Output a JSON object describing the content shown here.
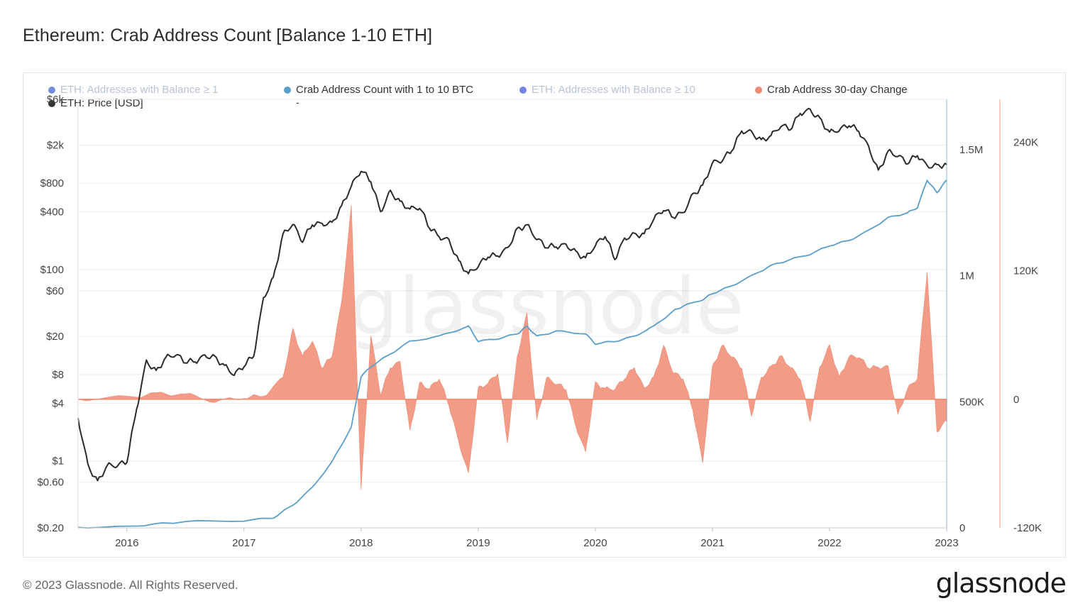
{
  "title": "Ethereum: Crab Address Count [Balance 1-10 ETH]",
  "legend": [
    {
      "label": "ETH: Addresses with Balance ≥ 1",
      "color": "#5b7bd6",
      "active": false
    },
    {
      "label": "Crab Address Count with 1 to 10 BTC",
      "color": "#5b9ec9",
      "active": true
    },
    {
      "label": "ETH: Addresses with Balance ≥ 10",
      "color": "#5b6fe0",
      "active": false
    },
    {
      "label": "Crab Address 30-day Change",
      "color": "#f08a72",
      "active": true
    },
    {
      "label": "ETH: Price [USD]",
      "color": "#333333",
      "active": true
    }
  ],
  "legend_dash": "-",
  "footer": {
    "copyright": "© 2023 Glassnode. All Rights Reserved.",
    "logo": "glassnode"
  },
  "watermark": "glassnode",
  "colors": {
    "price": "#2b2b2b",
    "count": "#5b9ec9",
    "change": "#f08a72",
    "grid": "#ececec"
  },
  "chart_data": {
    "type": "line",
    "x_ticks": [
      "2016",
      "2017",
      "2018",
      "2019",
      "2020",
      "2021",
      "2022",
      "2023"
    ],
    "x_range": [
      "2015-08",
      "2023-01"
    ],
    "y_left": {
      "label": "ETH: Price [USD]",
      "scale": "log",
      "ticks": [
        "$0.20",
        "$0.60",
        "$1",
        "$4",
        "$8",
        "$20",
        "$60",
        "$100",
        "$400",
        "$800",
        "$2k",
        "$6k"
      ]
    },
    "y_right_count": {
      "ticks": [
        "0",
        "500K",
        "1M",
        "1.5M"
      ],
      "range": [
        0,
        1700000
      ]
    },
    "y_right_change": {
      "ticks": [
        "-120K",
        "0",
        "120K",
        "240K"
      ],
      "range": [
        -120000,
        280000
      ]
    },
    "series": [
      {
        "name": "ETH: Price [USD]",
        "axis": "left",
        "points": [
          [
            "2015-08",
            2.8
          ],
          [
            "2015-09",
            0.9
          ],
          [
            "2015-10",
            0.6
          ],
          [
            "2015-11",
            0.9
          ],
          [
            "2015-12",
            0.9
          ],
          [
            "2016-01",
            1.0
          ],
          [
            "2016-02",
            3.5
          ],
          [
            "2016-03",
            11
          ],
          [
            "2016-04",
            8.5
          ],
          [
            "2016-05",
            12
          ],
          [
            "2016-06",
            13
          ],
          [
            "2016-07",
            11
          ],
          [
            "2016-08",
            11
          ],
          [
            "2016-09",
            12.5
          ],
          [
            "2016-10",
            12
          ],
          [
            "2016-11",
            9.8
          ],
          [
            "2016-12",
            8
          ],
          [
            "2017-01",
            10
          ],
          [
            "2017-02",
            12.7
          ],
          [
            "2017-03",
            50
          ],
          [
            "2017-04",
            80
          ],
          [
            "2017-05",
            230
          ],
          [
            "2017-06",
            300
          ],
          [
            "2017-07",
            200
          ],
          [
            "2017-08",
            300
          ],
          [
            "2017-09",
            300
          ],
          [
            "2017-10",
            300
          ],
          [
            "2017-11",
            450
          ],
          [
            "2017-12",
            750
          ],
          [
            "2018-01",
            1100
          ],
          [
            "2018-02",
            850
          ],
          [
            "2018-03",
            400
          ],
          [
            "2018-04",
            650
          ],
          [
            "2018-05",
            500
          ],
          [
            "2018-06",
            430
          ],
          [
            "2018-07",
            450
          ],
          [
            "2018-08",
            280
          ],
          [
            "2018-09",
            220
          ],
          [
            "2018-10",
            200
          ],
          [
            "2018-11",
            120
          ],
          [
            "2018-12",
            90
          ],
          [
            "2019-01",
            110
          ],
          [
            "2019-02",
            140
          ],
          [
            "2019-03",
            140
          ],
          [
            "2019-04",
            165
          ],
          [
            "2019-05",
            260
          ],
          [
            "2019-06",
            290
          ],
          [
            "2019-07",
            210
          ],
          [
            "2019-08",
            175
          ],
          [
            "2019-09",
            175
          ],
          [
            "2019-10",
            180
          ],
          [
            "2019-11",
            150
          ],
          [
            "2019-12",
            130
          ],
          [
            "2020-01",
            180
          ],
          [
            "2020-02",
            230
          ],
          [
            "2020-03",
            130
          ],
          [
            "2020-04",
            210
          ],
          [
            "2020-05",
            230
          ],
          [
            "2020-06",
            230
          ],
          [
            "2020-07",
            340
          ],
          [
            "2020-08",
            430
          ],
          [
            "2020-09",
            360
          ],
          [
            "2020-10",
            390
          ],
          [
            "2020-11",
            600
          ],
          [
            "2020-12",
            740
          ],
          [
            "2021-01",
            1300
          ],
          [
            "2021-02",
            1400
          ],
          [
            "2021-03",
            1800
          ],
          [
            "2021-04",
            2800
          ],
          [
            "2021-05",
            2700
          ],
          [
            "2021-06",
            2200
          ],
          [
            "2021-07",
            2500
          ],
          [
            "2021-08",
            3200
          ],
          [
            "2021-09",
            3000
          ],
          [
            "2021-10",
            4300
          ],
          [
            "2021-11",
            4600
          ],
          [
            "2021-12",
            3700
          ],
          [
            "2022-01",
            2700
          ],
          [
            "2022-02",
            2900
          ],
          [
            "2022-03",
            3300
          ],
          [
            "2022-04",
            2800
          ],
          [
            "2022-05",
            1900
          ],
          [
            "2022-06",
            1050
          ],
          [
            "2022-07",
            1700
          ],
          [
            "2022-08",
            1550
          ],
          [
            "2022-09",
            1320
          ],
          [
            "2022-10",
            1580
          ],
          [
            "2022-11",
            1200
          ],
          [
            "2022-12",
            1200
          ],
          [
            "2023-01",
            1250
          ]
        ]
      },
      {
        "name": "Crab Address Count with 1 to 10 BTC",
        "axis": "right_count",
        "points": [
          [
            "2015-08",
            2000
          ],
          [
            "2016-01",
            5000
          ],
          [
            "2016-04",
            15000
          ],
          [
            "2016-07",
            25000
          ],
          [
            "2017-01",
            28000
          ],
          [
            "2017-04",
            40000
          ],
          [
            "2017-06",
            90000
          ],
          [
            "2017-08",
            160000
          ],
          [
            "2017-10",
            260000
          ],
          [
            "2017-12",
            400000
          ],
          [
            "2018-01",
            600000
          ],
          [
            "2018-02",
            640000
          ],
          [
            "2018-04",
            690000
          ],
          [
            "2018-06",
            740000
          ],
          [
            "2018-09",
            760000
          ],
          [
            "2018-12",
            800000
          ],
          [
            "2019-01",
            740000
          ],
          [
            "2019-03",
            750000
          ],
          [
            "2019-05",
            770000
          ],
          [
            "2019-06",
            800000
          ],
          [
            "2019-07",
            760000
          ],
          [
            "2019-09",
            780000
          ],
          [
            "2019-12",
            770000
          ],
          [
            "2020-01",
            730000
          ],
          [
            "2020-03",
            740000
          ],
          [
            "2020-05",
            760000
          ],
          [
            "2020-07",
            800000
          ],
          [
            "2020-09",
            860000
          ],
          [
            "2020-10",
            880000
          ],
          [
            "2020-12",
            905000
          ],
          [
            "2021-01",
            930000
          ],
          [
            "2021-03",
            960000
          ],
          [
            "2021-05",
            1000000
          ],
          [
            "2021-07",
            1040000
          ],
          [
            "2021-09",
            1065000
          ],
          [
            "2021-11",
            1085000
          ],
          [
            "2022-01",
            1120000
          ],
          [
            "2022-03",
            1140000
          ],
          [
            "2022-05",
            1180000
          ],
          [
            "2022-07",
            1230000
          ],
          [
            "2022-09",
            1250000
          ],
          [
            "2022-10",
            1270000
          ],
          [
            "2022-11",
            1380000
          ],
          [
            "2022-12",
            1330000
          ],
          [
            "2023-01",
            1380000
          ]
        ]
      },
      {
        "name": "Crab Address 30-day Change",
        "axis": "right_change",
        "points": [
          [
            "2015-08",
            0
          ],
          [
            "2016-01",
            2000
          ],
          [
            "2016-04",
            5000
          ],
          [
            "2016-07",
            5000
          ],
          [
            "2016-10",
            -2000
          ],
          [
            "2017-01",
            2000
          ],
          [
            "2017-03",
            3000
          ],
          [
            "2017-05",
            20000
          ],
          [
            "2017-06",
            65000
          ],
          [
            "2017-07",
            40000
          ],
          [
            "2017-08",
            55000
          ],
          [
            "2017-09",
            30000
          ],
          [
            "2017-10",
            40000
          ],
          [
            "2017-11",
            90000
          ],
          [
            "2017-12",
            180000
          ],
          [
            "2018-01",
            -85000
          ],
          [
            "2018-02",
            60000
          ],
          [
            "2018-03",
            5000
          ],
          [
            "2018-04",
            30000
          ],
          [
            "2018-05",
            35000
          ],
          [
            "2018-06",
            -30000
          ],
          [
            "2018-07",
            15000
          ],
          [
            "2018-08",
            10000
          ],
          [
            "2018-09",
            20000
          ],
          [
            "2018-10",
            -5000
          ],
          [
            "2018-11",
            -40000
          ],
          [
            "2018-12",
            -70000
          ],
          [
            "2019-01",
            10000
          ],
          [
            "2019-02",
            15000
          ],
          [
            "2019-03",
            25000
          ],
          [
            "2019-04",
            -40000
          ],
          [
            "2019-05",
            40000
          ],
          [
            "2019-06",
            80000
          ],
          [
            "2019-07",
            -20000
          ],
          [
            "2019-08",
            20000
          ],
          [
            "2019-09",
            15000
          ],
          [
            "2019-10",
            10000
          ],
          [
            "2019-11",
            -25000
          ],
          [
            "2019-12",
            -50000
          ],
          [
            "2020-01",
            15000
          ],
          [
            "2020-02",
            10000
          ],
          [
            "2020-03",
            10000
          ],
          [
            "2020-04",
            20000
          ],
          [
            "2020-05",
            30000
          ],
          [
            "2020-06",
            10000
          ],
          [
            "2020-07",
            20000
          ],
          [
            "2020-08",
            50000
          ],
          [
            "2020-09",
            25000
          ],
          [
            "2020-10",
            20000
          ],
          [
            "2020-11",
            -10000
          ],
          [
            "2020-12",
            -60000
          ],
          [
            "2021-01",
            30000
          ],
          [
            "2021-02",
            50000
          ],
          [
            "2021-03",
            40000
          ],
          [
            "2021-04",
            30000
          ],
          [
            "2021-05",
            -15000
          ],
          [
            "2021-06",
            20000
          ],
          [
            "2021-07",
            30000
          ],
          [
            "2021-08",
            40000
          ],
          [
            "2021-09",
            30000
          ],
          [
            "2021-10",
            20000
          ],
          [
            "2021-11",
            -20000
          ],
          [
            "2021-12",
            30000
          ],
          [
            "2022-01",
            50000
          ],
          [
            "2022-02",
            20000
          ],
          [
            "2022-03",
            40000
          ],
          [
            "2022-04",
            40000
          ],
          [
            "2022-05",
            30000
          ],
          [
            "2022-06",
            30000
          ],
          [
            "2022-07",
            30000
          ],
          [
            "2022-08",
            -15000
          ],
          [
            "2022-09",
            10000
          ],
          [
            "2022-10",
            20000
          ],
          [
            "2022-11",
            120000
          ],
          [
            "2022-12",
            -30000
          ],
          [
            "2023-01",
            -20000
          ]
        ]
      }
    ],
    "grid": true,
    "legend_position": "top"
  }
}
